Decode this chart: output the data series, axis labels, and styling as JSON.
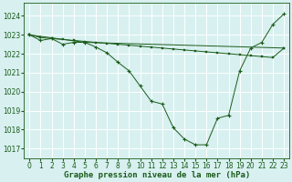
{
  "bg_color": "#d8f0f0",
  "grid_color": "#ffffff",
  "line_color": "#1a5c1a",
  "marker_color": "#1a5c1a",
  "xlabel": "Graphe pression niveau de la mer (hPa)",
  "xlabel_fontsize": 6.5,
  "tick_fontsize": 5.5,
  "ylim": [
    1016.5,
    1024.7
  ],
  "xlim": [
    -0.5,
    23.5
  ],
  "yticks": [
    1017,
    1018,
    1019,
    1020,
    1021,
    1022,
    1023,
    1024
  ],
  "xticks": [
    0,
    1,
    2,
    3,
    4,
    5,
    6,
    7,
    8,
    9,
    10,
    11,
    12,
    13,
    14,
    15,
    16,
    17,
    18,
    19,
    20,
    21,
    22,
    23
  ],
  "series1_x": [
    0,
    1,
    2,
    3,
    4,
    5,
    6,
    7,
    8,
    9,
    10,
    11,
    12,
    13,
    14,
    15,
    16,
    17,
    18,
    19,
    20,
    21,
    22,
    23
  ],
  "series1_y": [
    1023.0,
    1022.85,
    1022.8,
    1022.75,
    1022.7,
    1022.65,
    1022.6,
    1022.55,
    1022.5,
    1022.45,
    1022.4,
    1022.35,
    1022.3,
    1022.25,
    1022.2,
    1022.15,
    1022.1,
    1022.05,
    1022.0,
    1021.95,
    1021.9,
    1021.85,
    1021.8,
    1022.3
  ],
  "series2_x": [
    0,
    5,
    23
  ],
  "series2_y": [
    1023.0,
    1022.6,
    1022.3
  ],
  "series3_x": [
    0,
    1,
    2,
    3,
    4,
    5,
    6,
    7,
    8,
    9,
    10,
    11,
    12,
    13,
    14,
    15,
    16,
    17,
    18,
    19,
    20,
    21,
    22,
    23
  ],
  "series3_y": [
    1023.0,
    1022.7,
    1022.8,
    1022.5,
    1022.6,
    1022.6,
    1022.35,
    1022.05,
    1021.55,
    1021.1,
    1020.3,
    1019.5,
    1019.35,
    1018.1,
    1017.5,
    1017.2,
    1017.2,
    1018.6,
    1018.75,
    1021.1,
    1022.3,
    1022.6,
    1023.55,
    1024.1
  ]
}
